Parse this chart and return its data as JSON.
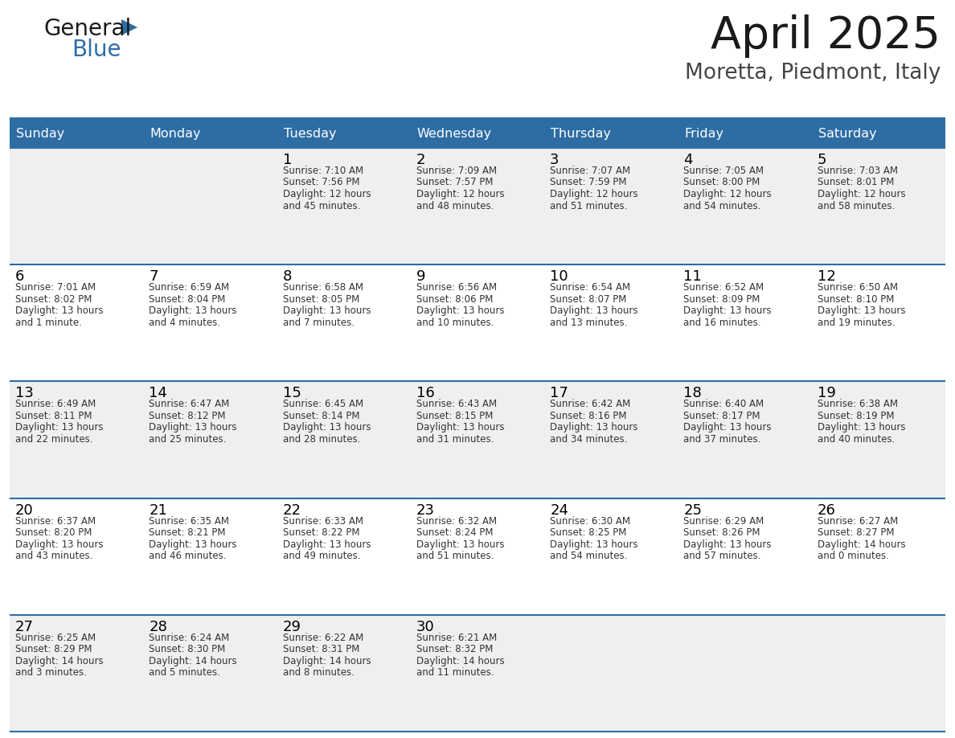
{
  "title": "April 2025",
  "subtitle": "Moretta, Piedmont, Italy",
  "header_bg": "#2E6DA4",
  "header_text_color": "#FFFFFF",
  "cell_bg_even": "#EFEFEF",
  "cell_bg_odd": "#FFFFFF",
  "day_number_color": "#000000",
  "cell_text_color": "#333333",
  "grid_line_color": "#2E6DA4",
  "days_of_week": [
    "Sunday",
    "Monday",
    "Tuesday",
    "Wednesday",
    "Thursday",
    "Friday",
    "Saturday"
  ],
  "weeks": [
    [
      {
        "day": "",
        "info": ""
      },
      {
        "day": "",
        "info": ""
      },
      {
        "day": "1",
        "info": "Sunrise: 7:10 AM\nSunset: 7:56 PM\nDaylight: 12 hours\nand 45 minutes."
      },
      {
        "day": "2",
        "info": "Sunrise: 7:09 AM\nSunset: 7:57 PM\nDaylight: 12 hours\nand 48 minutes."
      },
      {
        "day": "3",
        "info": "Sunrise: 7:07 AM\nSunset: 7:59 PM\nDaylight: 12 hours\nand 51 minutes."
      },
      {
        "day": "4",
        "info": "Sunrise: 7:05 AM\nSunset: 8:00 PM\nDaylight: 12 hours\nand 54 minutes."
      },
      {
        "day": "5",
        "info": "Sunrise: 7:03 AM\nSunset: 8:01 PM\nDaylight: 12 hours\nand 58 minutes."
      }
    ],
    [
      {
        "day": "6",
        "info": "Sunrise: 7:01 AM\nSunset: 8:02 PM\nDaylight: 13 hours\nand 1 minute."
      },
      {
        "day": "7",
        "info": "Sunrise: 6:59 AM\nSunset: 8:04 PM\nDaylight: 13 hours\nand 4 minutes."
      },
      {
        "day": "8",
        "info": "Sunrise: 6:58 AM\nSunset: 8:05 PM\nDaylight: 13 hours\nand 7 minutes."
      },
      {
        "day": "9",
        "info": "Sunrise: 6:56 AM\nSunset: 8:06 PM\nDaylight: 13 hours\nand 10 minutes."
      },
      {
        "day": "10",
        "info": "Sunrise: 6:54 AM\nSunset: 8:07 PM\nDaylight: 13 hours\nand 13 minutes."
      },
      {
        "day": "11",
        "info": "Sunrise: 6:52 AM\nSunset: 8:09 PM\nDaylight: 13 hours\nand 16 minutes."
      },
      {
        "day": "12",
        "info": "Sunrise: 6:50 AM\nSunset: 8:10 PM\nDaylight: 13 hours\nand 19 minutes."
      }
    ],
    [
      {
        "day": "13",
        "info": "Sunrise: 6:49 AM\nSunset: 8:11 PM\nDaylight: 13 hours\nand 22 minutes."
      },
      {
        "day": "14",
        "info": "Sunrise: 6:47 AM\nSunset: 8:12 PM\nDaylight: 13 hours\nand 25 minutes."
      },
      {
        "day": "15",
        "info": "Sunrise: 6:45 AM\nSunset: 8:14 PM\nDaylight: 13 hours\nand 28 minutes."
      },
      {
        "day": "16",
        "info": "Sunrise: 6:43 AM\nSunset: 8:15 PM\nDaylight: 13 hours\nand 31 minutes."
      },
      {
        "day": "17",
        "info": "Sunrise: 6:42 AM\nSunset: 8:16 PM\nDaylight: 13 hours\nand 34 minutes."
      },
      {
        "day": "18",
        "info": "Sunrise: 6:40 AM\nSunset: 8:17 PM\nDaylight: 13 hours\nand 37 minutes."
      },
      {
        "day": "19",
        "info": "Sunrise: 6:38 AM\nSunset: 8:19 PM\nDaylight: 13 hours\nand 40 minutes."
      }
    ],
    [
      {
        "day": "20",
        "info": "Sunrise: 6:37 AM\nSunset: 8:20 PM\nDaylight: 13 hours\nand 43 minutes."
      },
      {
        "day": "21",
        "info": "Sunrise: 6:35 AM\nSunset: 8:21 PM\nDaylight: 13 hours\nand 46 minutes."
      },
      {
        "day": "22",
        "info": "Sunrise: 6:33 AM\nSunset: 8:22 PM\nDaylight: 13 hours\nand 49 minutes."
      },
      {
        "day": "23",
        "info": "Sunrise: 6:32 AM\nSunset: 8:24 PM\nDaylight: 13 hours\nand 51 minutes."
      },
      {
        "day": "24",
        "info": "Sunrise: 6:30 AM\nSunset: 8:25 PM\nDaylight: 13 hours\nand 54 minutes."
      },
      {
        "day": "25",
        "info": "Sunrise: 6:29 AM\nSunset: 8:26 PM\nDaylight: 13 hours\nand 57 minutes."
      },
      {
        "day": "26",
        "info": "Sunrise: 6:27 AM\nSunset: 8:27 PM\nDaylight: 14 hours\nand 0 minutes."
      }
    ],
    [
      {
        "day": "27",
        "info": "Sunrise: 6:25 AM\nSunset: 8:29 PM\nDaylight: 14 hours\nand 3 minutes."
      },
      {
        "day": "28",
        "info": "Sunrise: 6:24 AM\nSunset: 8:30 PM\nDaylight: 14 hours\nand 5 minutes."
      },
      {
        "day": "29",
        "info": "Sunrise: 6:22 AM\nSunset: 8:31 PM\nDaylight: 14 hours\nand 8 minutes."
      },
      {
        "day": "30",
        "info": "Sunrise: 6:21 AM\nSunset: 8:32 PM\nDaylight: 14 hours\nand 11 minutes."
      },
      {
        "day": "",
        "info": ""
      },
      {
        "day": "",
        "info": ""
      },
      {
        "day": "",
        "info": ""
      }
    ]
  ]
}
